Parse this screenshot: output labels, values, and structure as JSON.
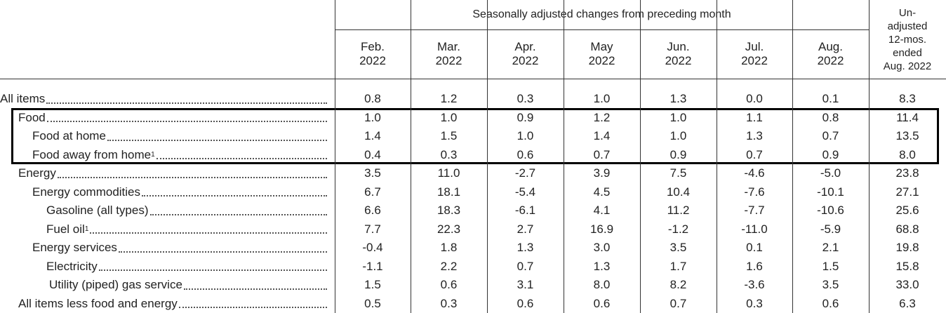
{
  "header": {
    "group_title": "Seasonally adjusted changes from preceding month",
    "unadjusted_title": "Un-\nadjusted\n12-mos.\nended\nAug. 2022",
    "columns": [
      "Feb.\n2022",
      "Mar.\n2022",
      "Apr.\n2022",
      "May\n2022",
      "Jun.\n2022",
      "Jul.\n2022",
      "Aug.\n2022"
    ]
  },
  "rows": [
    {
      "label": "All items",
      "values": [
        "0.8",
        "1.2",
        "0.3",
        "1.0",
        "1.3",
        "0.0",
        "0.1",
        "8.3"
      ]
    },
    {
      "label": "Food",
      "values": [
        "1.0",
        "1.0",
        "0.9",
        "1.2",
        "1.0",
        "1.1",
        "0.8",
        "11.4"
      ]
    },
    {
      "label": "Food at home",
      "values": [
        "1.4",
        "1.5",
        "1.0",
        "1.4",
        "1.0",
        "1.3",
        "0.7",
        "13.5"
      ]
    },
    {
      "label": "Food away from home",
      "footnote": "1",
      "values": [
        "0.4",
        "0.3",
        "0.6",
        "0.7",
        "0.9",
        "0.7",
        "0.9",
        "8.0"
      ]
    },
    {
      "label": "Energy",
      "values": [
        "3.5",
        "11.0",
        "-2.7",
        "3.9",
        "7.5",
        "-4.6",
        "-5.0",
        "23.8"
      ]
    },
    {
      "label": "Energy commodities",
      "values": [
        "6.7",
        "18.1",
        "-5.4",
        "4.5",
        "10.4",
        "-7.6",
        "-10.1",
        "27.1"
      ]
    },
    {
      "label": "Gasoline (all types)",
      "values": [
        "6.6",
        "18.3",
        "-6.1",
        "4.1",
        "11.2",
        "-7.7",
        "-10.6",
        "25.6"
      ]
    },
    {
      "label": "Fuel oil",
      "footnote": "1",
      "values": [
        "7.7",
        "22.3",
        "2.7",
        "16.9",
        "-1.2",
        "-11.0",
        "-5.9",
        "68.8"
      ]
    },
    {
      "label": "Energy services",
      "values": [
        "-0.4",
        "1.8",
        "1.3",
        "3.0",
        "3.5",
        "0.1",
        "2.1",
        "19.8"
      ]
    },
    {
      "label": "Electricity",
      "values": [
        "-1.1",
        "2.2",
        "0.7",
        "1.3",
        "1.7",
        "1.6",
        "1.5",
        "15.8"
      ]
    },
    {
      "label": "Utility (piped) gas service",
      "values": [
        "1.5",
        "0.6",
        "3.1",
        "8.0",
        "8.2",
        "-3.6",
        "3.5",
        "33.0"
      ]
    },
    {
      "label": "All items less food and energy",
      "values": [
        "0.5",
        "0.3",
        "0.6",
        "0.6",
        "0.7",
        "0.3",
        "0.6",
        "6.3"
      ]
    }
  ]
}
